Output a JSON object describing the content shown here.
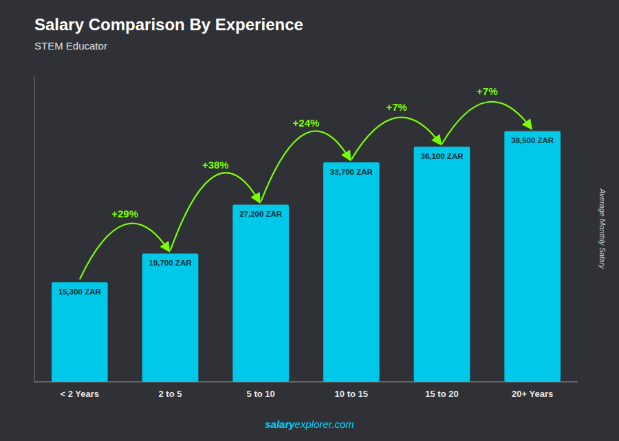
{
  "chart_data": {
    "type": "bar",
    "title": "Salary Comparison By Experience",
    "subtitle": "STEM Educator",
    "y_label": "Average Monthly Salary",
    "categories": [
      "< 2 Years",
      "2 to 5",
      "5 to 10",
      "10 to 15",
      "15 to 20",
      "20+ Years"
    ],
    "values": [
      15300,
      19700,
      27200,
      33700,
      36100,
      38500
    ],
    "value_labels": [
      "15,300 ZAR",
      "19,700 ZAR",
      "27,200 ZAR",
      "33,700 ZAR",
      "36,100 ZAR",
      "38,500 ZAR"
    ],
    "data_labels": true,
    "color": "#00c8e8",
    "ylim": [
      0,
      47000
    ],
    "tick_labels": "x",
    "grid": false,
    "annotations": [
      {
        "text": "+29%",
        "color": "#7aff00"
      },
      {
        "text": "+38%",
        "color": "#7aff00"
      },
      {
        "text": "+24%",
        "color": "#7aff00"
      },
      {
        "text": "+7%",
        "color": "#7aff00"
      },
      {
        "text": "+7%",
        "color": "#7aff00"
      }
    ],
    "footer": [
      "salary",
      "explorer.com"
    ]
  }
}
